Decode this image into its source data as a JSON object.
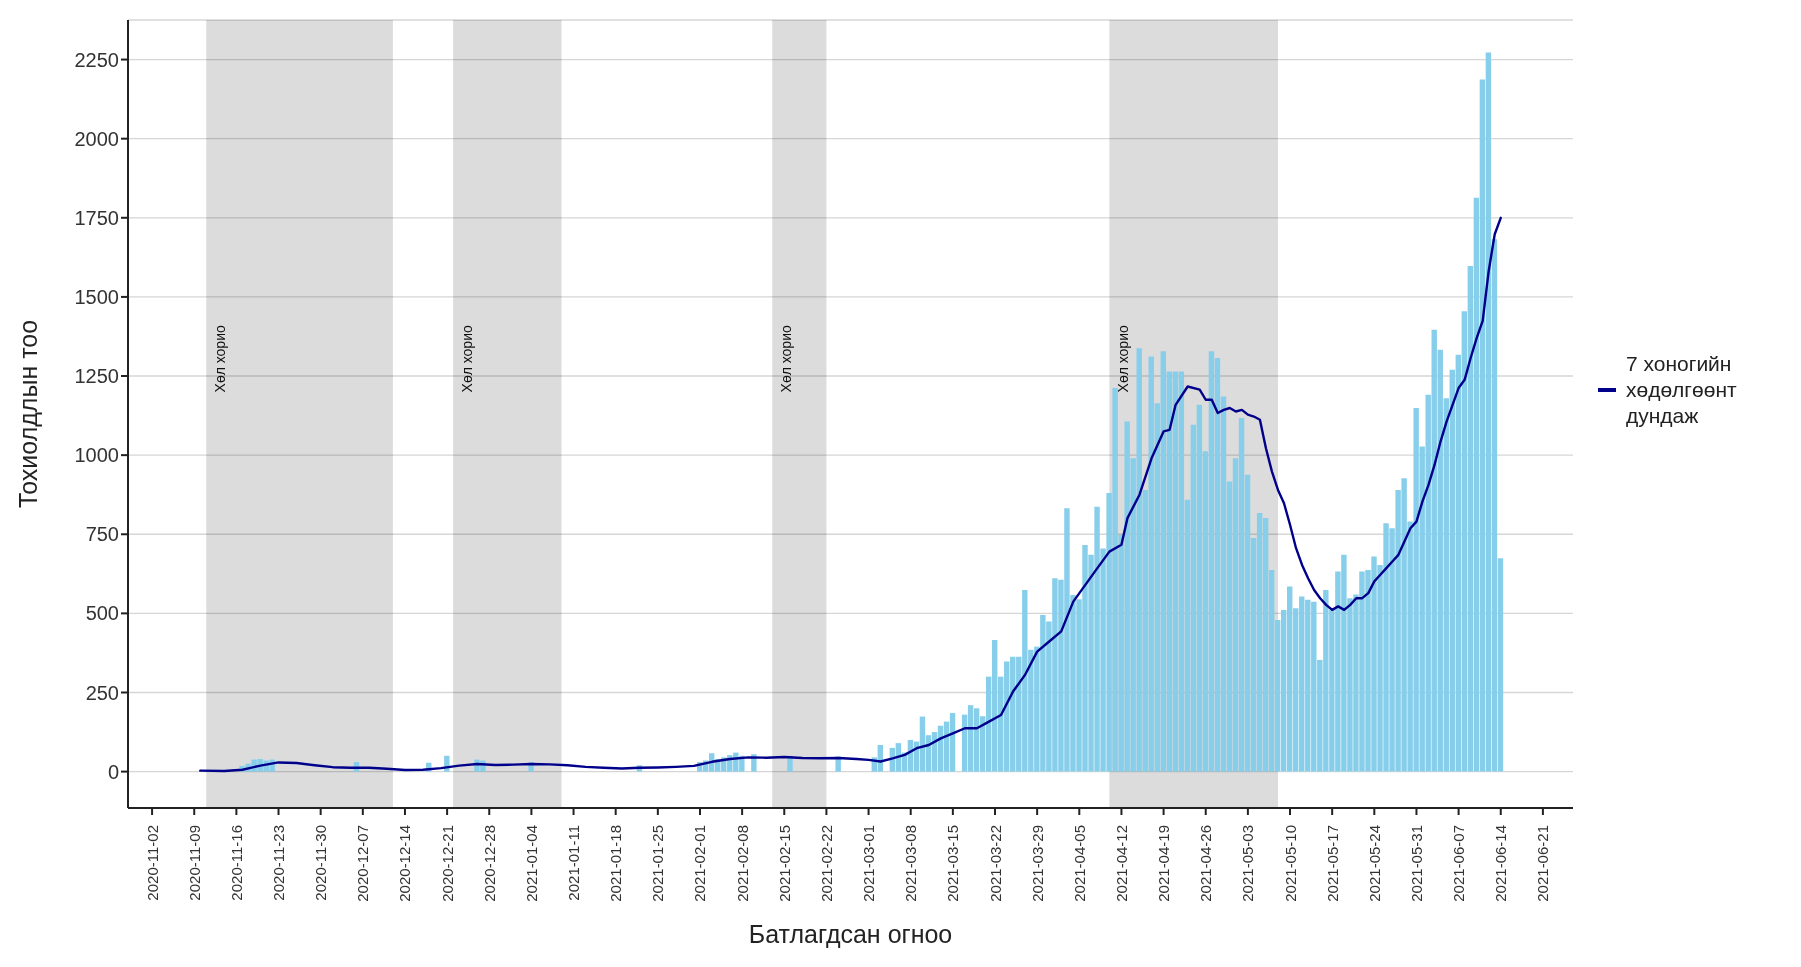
{
  "chart_data": {
    "type": "bar",
    "xlabel": "Батлагдсан огноо",
    "ylabel": "Тохиолдлын тоо",
    "x": [
      "2020-11-17",
      "2020-11-18",
      "2020-11-19",
      "2020-11-20",
      "2020-11-21",
      "2020-11-22",
      "2020-11-23",
      "2020-11-24",
      "2020-11-25",
      "2020-11-26",
      "2020-11-27",
      "2020-11-28",
      "2020-11-29",
      "2020-11-30",
      "2020-12-01",
      "2020-12-02",
      "2020-12-03",
      "2020-12-04",
      "2020-12-05",
      "2020-12-06",
      "2020-12-07",
      "2020-12-08",
      "2020-12-09",
      "2020-12-10",
      "2020-12-11",
      "2020-12-12",
      "2020-12-13",
      "2020-12-14",
      "2020-12-15",
      "2020-12-16",
      "2020-12-17",
      "2020-12-18",
      "2020-12-19",
      "2020-12-20",
      "2020-12-21",
      "2020-12-22",
      "2020-12-23",
      "2020-12-24",
      "2020-12-25",
      "2020-12-26",
      "2020-12-27",
      "2020-12-28",
      "2020-12-29",
      "2020-12-30",
      "2020-12-31",
      "2021-01-01",
      "2021-01-02",
      "2021-01-03",
      "2021-01-04",
      "2021-01-05",
      "2021-01-06",
      "2021-01-07",
      "2021-01-08",
      "2021-01-09",
      "2021-01-10",
      "2021-01-11",
      "2021-01-12",
      "2021-01-13",
      "2021-01-14",
      "2021-01-15",
      "2021-01-16",
      "2021-01-17",
      "2021-01-18",
      "2021-01-19",
      "2021-01-20",
      "2021-01-21",
      "2021-01-22",
      "2021-01-23",
      "2021-01-24",
      "2021-01-25",
      "2021-01-26",
      "2021-01-27",
      "2021-01-28",
      "2021-01-29",
      "2021-01-30",
      "2021-01-31",
      "2021-02-01",
      "2021-02-02",
      "2021-02-03",
      "2021-02-04",
      "2021-02-05",
      "2021-02-06",
      "2021-02-07",
      "2021-02-08",
      "2021-02-09",
      "2021-02-10",
      "2021-02-11",
      "2021-02-12",
      "2021-02-13",
      "2021-02-14",
      "2021-02-15",
      "2021-02-16",
      "2021-02-17",
      "2021-02-18",
      "2021-02-19",
      "2021-02-20",
      "2021-02-21",
      "2021-02-22",
      "2021-02-23",
      "2021-02-24",
      "2021-02-25",
      "2021-02-26",
      "2021-02-27",
      "2021-02-28",
      "2021-03-01",
      "2021-03-02",
      "2021-03-03",
      "2021-03-04",
      "2021-03-05",
      "2021-03-06",
      "2021-03-07",
      "2021-03-08",
      "2021-03-09",
      "2021-03-10",
      "2021-03-11",
      "2021-03-12",
      "2021-03-13",
      "2021-03-14",
      "2021-03-15",
      "2021-03-16",
      "2021-03-17",
      "2021-03-18",
      "2021-03-19",
      "2021-03-20",
      "2021-03-21",
      "2021-03-22",
      "2021-03-23",
      "2021-03-24",
      "2021-03-25",
      "2021-03-26",
      "2021-03-27",
      "2021-03-28",
      "2021-03-29",
      "2021-03-30",
      "2021-03-31",
      "2021-04-01",
      "2021-04-02",
      "2021-04-03",
      "2021-04-04",
      "2021-04-05",
      "2021-04-06",
      "2021-04-07",
      "2021-04-08",
      "2021-04-09",
      "2021-04-10",
      "2021-04-11",
      "2021-04-12",
      "2021-04-13",
      "2021-04-14",
      "2021-04-15",
      "2021-04-16",
      "2021-04-17",
      "2021-04-18",
      "2021-04-19",
      "2021-04-20",
      "2021-04-21",
      "2021-04-22",
      "2021-04-23",
      "2021-04-24",
      "2021-04-25",
      "2021-04-26",
      "2021-04-27",
      "2021-04-28",
      "2021-04-29",
      "2021-04-30",
      "2021-05-01",
      "2021-05-02",
      "2021-05-03",
      "2021-05-04",
      "2021-05-05",
      "2021-05-06",
      "2021-05-07",
      "2021-05-08",
      "2021-05-09",
      "2021-05-10",
      "2021-05-11",
      "2021-05-12",
      "2021-05-13",
      "2021-05-14",
      "2021-05-15",
      "2021-05-16",
      "2021-05-17",
      "2021-05-18",
      "2021-05-19",
      "2021-05-20",
      "2021-05-21",
      "2021-05-22",
      "2021-05-23",
      "2021-05-24",
      "2021-05-25",
      "2021-05-26",
      "2021-05-27",
      "2021-05-28",
      "2021-05-29",
      "2021-05-30",
      "2021-05-31",
      "2021-06-01",
      "2021-06-02",
      "2021-06-03",
      "2021-06-04",
      "2021-06-05",
      "2021-06-06",
      "2021-06-07",
      "2021-06-08",
      "2021-06-09",
      "2021-06-10",
      "2021-06-11",
      "2021-06-12",
      "2021-06-13",
      "2021-06-14"
    ],
    "series": [
      {
        "color": "#87ceeb",
        "values": [
          18,
          25,
          38,
          40,
          35,
          38,
          null,
          null,
          null,
          null,
          null,
          null,
          null,
          null,
          null,
          null,
          null,
          null,
          null,
          30,
          null,
          null,
          null,
          null,
          null,
          null,
          null,
          null,
          null,
          null,
          null,
          28,
          null,
          null,
          50,
          null,
          null,
          null,
          null,
          38,
          35,
          null,
          null,
          null,
          null,
          null,
          null,
          null,
          30,
          null,
          null,
          null,
          null,
          null,
          null,
          null,
          null,
          null,
          null,
          null,
          null,
          null,
          null,
          null,
          null,
          null,
          20,
          null,
          null,
          null,
          null,
          null,
          null,
          null,
          null,
          null,
          30,
          35,
          58,
          40,
          45,
          52,
          60,
          50,
          null,
          55,
          null,
          null,
          null,
          null,
          null,
          50,
          null,
          null,
          null,
          null,
          null,
          null,
          null,
          48,
          null,
          null,
          null,
          null,
          null,
          45,
          84,
          null,
          75,
          90,
          60,
          100,
          95,
          174,
          115,
          125,
          145,
          158,
          185,
          null,
          180,
          210,
          200,
          175,
          300,
          416,
          300,
          348,
          363,
          363,
          574,
          385,
          395,
          495,
          474,
          611,
          606,
          832,
          558,
          545,
          716,
          685,
          837,
          705,
          880,
          1212,
          748,
          1106,
          990,
          1338,
          890,
          1312,
          1164,
          1328,
          1264,
          1264,
          1264,
          859,
          1096,
          1159,
          1012,
          1328,
          1307,
          1185,
          917,
          990,
          1117,
          938,
          738,
          817,
          801,
          637,
          479,
          511,
          585,
          516,
          553,
          543,
          537,
          353,
          574,
          511,
          632,
          685,
          548,
          560,
          632,
          637,
          680,
          653,
          785,
          769,
          890,
          927,
          790,
          1149,
          1027,
          1191,
          1396,
          1333,
          1180,
          1270,
          1317,
          1455,
          1598,
          1813,
          2187,
          2272,
          1682,
          674
        ]
      },
      {
        "type": "line",
        "name": "7 хоногийн хөдөлгөөнт дундаж",
        "color": "#00008b",
        "x": [
          "2020-11-10",
          "2020-11-14",
          "2020-11-17",
          "2020-11-20",
          "2020-11-23",
          "2020-11-26",
          "2020-11-29",
          "2020-12-02",
          "2020-12-05",
          "2020-12-08",
          "2020-12-11",
          "2020-12-14",
          "2020-12-17",
          "2020-12-20",
          "2020-12-23",
          "2020-12-26",
          "2020-12-29",
          "2021-01-01",
          "2021-01-04",
          "2021-01-07",
          "2021-01-10",
          "2021-01-13",
          "2021-01-16",
          "2021-01-19",
          "2021-01-22",
          "2021-01-25",
          "2021-01-28",
          "2021-01-31",
          "2021-02-03",
          "2021-02-06",
          "2021-02-09",
          "2021-02-12",
          "2021-02-15",
          "2021-02-18",
          "2021-02-21",
          "2021-02-24",
          "2021-02-27",
          "2021-03-01",
          "2021-03-03",
          "2021-03-05",
          "2021-03-07",
          "2021-03-09",
          "2021-03-11",
          "2021-03-13",
          "2021-03-15",
          "2021-03-17",
          "2021-03-19",
          "2021-03-21",
          "2021-03-23",
          "2021-03-25",
          "2021-03-27",
          "2021-03-29",
          "2021-03-31",
          "2021-04-02",
          "2021-04-04",
          "2021-04-06",
          "2021-04-08",
          "2021-04-10",
          "2021-04-12",
          "2021-04-13",
          "2021-04-15",
          "2021-04-17",
          "2021-04-19",
          "2021-04-20",
          "2021-04-21",
          "2021-04-23",
          "2021-04-25",
          "2021-04-26",
          "2021-04-27",
          "2021-04-28",
          "2021-04-29",
          "2021-04-30",
          "2021-05-01",
          "2021-05-02",
          "2021-05-03",
          "2021-05-04",
          "2021-05-05",
          "2021-05-06",
          "2021-05-07",
          "2021-05-08",
          "2021-05-09",
          "2021-05-10",
          "2021-05-11",
          "2021-05-12",
          "2021-05-13",
          "2021-05-14",
          "2021-05-15",
          "2021-05-16",
          "2021-05-17",
          "2021-05-18",
          "2021-05-19",
          "2021-05-20",
          "2021-05-21",
          "2021-05-22",
          "2021-05-23",
          "2021-05-24",
          "2021-05-25",
          "2021-05-26",
          "2021-05-27",
          "2021-05-28",
          "2021-05-29",
          "2021-05-30",
          "2021-05-31",
          "2021-06-01",
          "2021-06-02",
          "2021-06-03",
          "2021-06-04",
          "2021-06-05",
          "2021-06-06",
          "2021-06-07",
          "2021-06-08",
          "2021-06-09",
          "2021-06-10",
          "2021-06-11",
          "2021-06-12",
          "2021-06-13",
          "2021-06-14"
        ],
        "values": [
          3,
          2,
          6,
          19,
          29,
          27,
          20,
          14,
          12,
          12,
          9,
          5,
          6,
          11,
          19,
          24,
          21,
          22,
          24,
          23,
          20,
          15,
          12,
          10,
          12,
          13,
          15,
          18,
          31,
          40,
          45,
          44,
          46,
          43,
          42,
          43,
          40,
          37,
          32,
          42,
          53,
          74,
          84,
          105,
          121,
          137,
          137,
          158,
          179,
          253,
          306,
          379,
          411,
          443,
          537,
          590,
          643,
          695,
          717,
          801,
          875,
          990,
          1075,
          1080,
          1159,
          1217,
          1207,
          1175,
          1175,
          1133,
          1143,
          1149,
          1138,
          1143,
          1128,
          1122,
          1112,
          1022,
          948,
          890,
          848,
          780,
          706,
          653,
          611,
          574,
          548,
          527,
          511,
          522,
          511,
          527,
          548,
          548,
          564,
          601,
          622,
          643,
          664,
          685,
          727,
          769,
          790,
          854,
          906,
          969,
          1043,
          1106,
          1159,
          1212,
          1238,
          1307,
          1370,
          1424,
          1582,
          1698,
          1750
        ]
      }
    ],
    "xlim": [
      "2020-10-29",
      "2021-06-26"
    ],
    "xticks": [
      "2020-11-02",
      "2020-11-09",
      "2020-11-16",
      "2020-11-23",
      "2020-11-30",
      "2020-12-07",
      "2020-12-14",
      "2020-12-21",
      "2020-12-28",
      "2021-01-04",
      "2021-01-11",
      "2021-01-18",
      "2021-01-25",
      "2021-02-01",
      "2021-02-08",
      "2021-02-15",
      "2021-02-22",
      "2021-03-01",
      "2021-03-08",
      "2021-03-15",
      "2021-03-22",
      "2021-03-29",
      "2021-04-05",
      "2021-04-12",
      "2021-04-19",
      "2021-04-26",
      "2021-05-03",
      "2021-05-10",
      "2021-05-17",
      "2021-05-24",
      "2021-05-31",
      "2021-06-07",
      "2021-06-14",
      "2021-06-21"
    ],
    "ylim": [
      -115,
      2375
    ],
    "yticks": [
      0,
      250,
      500,
      750,
      1000,
      1250,
      1500,
      1750,
      2000,
      2250
    ],
    "bands": [
      {
        "axis": "x",
        "from": "2020-11-11",
        "to": "2020-12-12",
        "label": "Хөл хорио",
        "color": "#dcdcdc"
      },
      {
        "axis": "x",
        "from": "2020-12-22",
        "to": "2021-01-09",
        "label": "Хөл хорио",
        "color": "#dcdcdc"
      },
      {
        "axis": "x",
        "from": "2021-02-13",
        "to": "2021-02-22",
        "label": "Хөл хорио",
        "color": "#dcdcdc"
      },
      {
        "axis": "x",
        "from": "2021-04-10",
        "to": "2021-05-08",
        "label": "Хөл хорио",
        "color": "#dcdcdc"
      }
    ],
    "grid": "y",
    "legend": "right",
    "marker": "none",
    "line_style": "solid"
  }
}
